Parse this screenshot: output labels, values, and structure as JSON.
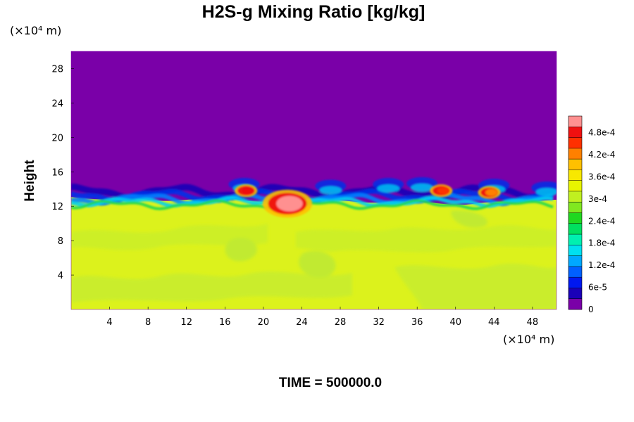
{
  "chart_data": {
    "type": "heatmap",
    "title": "H2S-g Mixing Ratio [kg/kg]",
    "ylabel": "Height",
    "xlabel": "",
    "x_unit_label": "(×10⁴ m)",
    "y_unit_label": "(×10⁴ m)",
    "x_ticks": [
      "4",
      "8",
      "12",
      "16",
      "20",
      "24",
      "28",
      "32",
      "36",
      "40",
      "44",
      "48"
    ],
    "y_ticks": [
      "4",
      "8",
      "12",
      "16",
      "20",
      "24",
      "28"
    ],
    "xlim": [
      0,
      50.5
    ],
    "ylim": [
      0,
      30
    ],
    "colorbar": {
      "min": 0,
      "max": 0.000525,
      "tick_labels": [
        "0",
        "6e-5",
        "1.2e-4",
        "1.8e-4",
        "2.4e-4",
        "3e-4",
        "3.6e-4",
        "4.2e-4",
        "4.8e-4"
      ],
      "tick_values": [
        0,
        6e-05,
        0.00012,
        0.00018,
        0.00024,
        0.0003,
        0.00036,
        0.00042,
        0.00048
      ],
      "colors": [
        "#7a00a8",
        "#1a00b8",
        "#0018f0",
        "#0060ff",
        "#00a8ff",
        "#00e0f0",
        "#00f0b0",
        "#00e060",
        "#20d820",
        "#80e820",
        "#c0f020",
        "#e8f400",
        "#f8e800",
        "#ffc000",
        "#ff8000",
        "#ff3000",
        "#f01010",
        "#ff9090"
      ],
      "levels_count": 18
    },
    "field_summary": {
      "background_value": 0,
      "lower_layer_value": 0.00036,
      "lower_layer_top_y": 12.5,
      "hotspots": [
        {
          "x": 22.5,
          "y": 12.3,
          "value": 0.0005
        },
        {
          "x": 18.2,
          "y": 13.8,
          "value": 0.00047
        },
        {
          "x": 38.5,
          "y": 13.8,
          "value": 0.00045
        },
        {
          "x": 43.5,
          "y": 13.6,
          "value": 0.00042
        }
      ]
    },
    "time_label": "TIME = 500000.0"
  },
  "colors": {
    "background": "#ffffff",
    "upper_field": "#7a00a8",
    "lower_field": "#dcf21c",
    "lower_field_light": "#c4ec2c"
  }
}
